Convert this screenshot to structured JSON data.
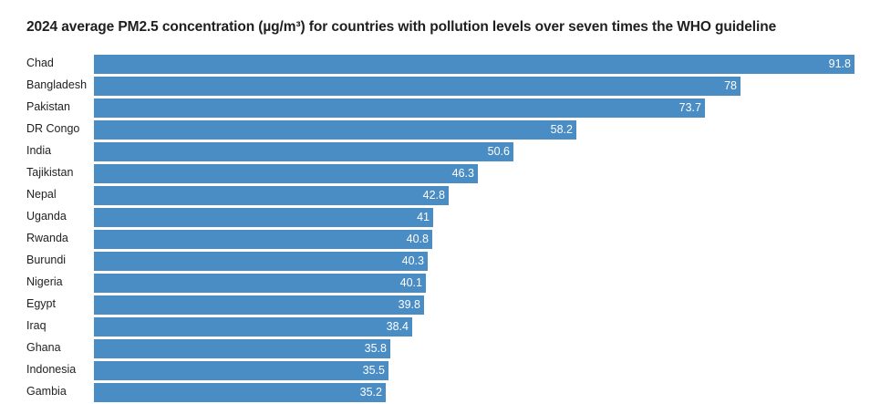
{
  "chart_data": {
    "type": "bar",
    "orientation": "horizontal",
    "title": "2024 average PM2.5 concentration (µg/m³) for countries with pollution levels over seven times the WHO guideline",
    "xlabel": "",
    "ylabel": "",
    "xlim": [
      0,
      91.8
    ],
    "categories": [
      "Chad",
      "Bangladesh",
      "Pakistan",
      "DR Congo",
      "India",
      "Tajikistan",
      "Nepal",
      "Uganda",
      "Rwanda",
      "Burundi",
      "Nigeria",
      "Egypt",
      "Iraq",
      "Ghana",
      "Indonesia",
      "Gambia"
    ],
    "values": [
      91.8,
      78,
      73.7,
      58.2,
      50.6,
      46.3,
      42.8,
      41,
      40.8,
      40.3,
      40.1,
      39.8,
      38.4,
      35.8,
      35.5,
      35.2
    ],
    "value_labels": [
      "91.8",
      "78",
      "73.7",
      "58.2",
      "50.6",
      "46.3",
      "42.8",
      "41",
      "40.8",
      "40.3",
      "40.1",
      "39.8",
      "38.4",
      "35.8",
      "35.5",
      "35.2"
    ],
    "bar_color": "#4a8cc4",
    "label_color": "#ffffff",
    "grid": false,
    "legend": "none"
  }
}
